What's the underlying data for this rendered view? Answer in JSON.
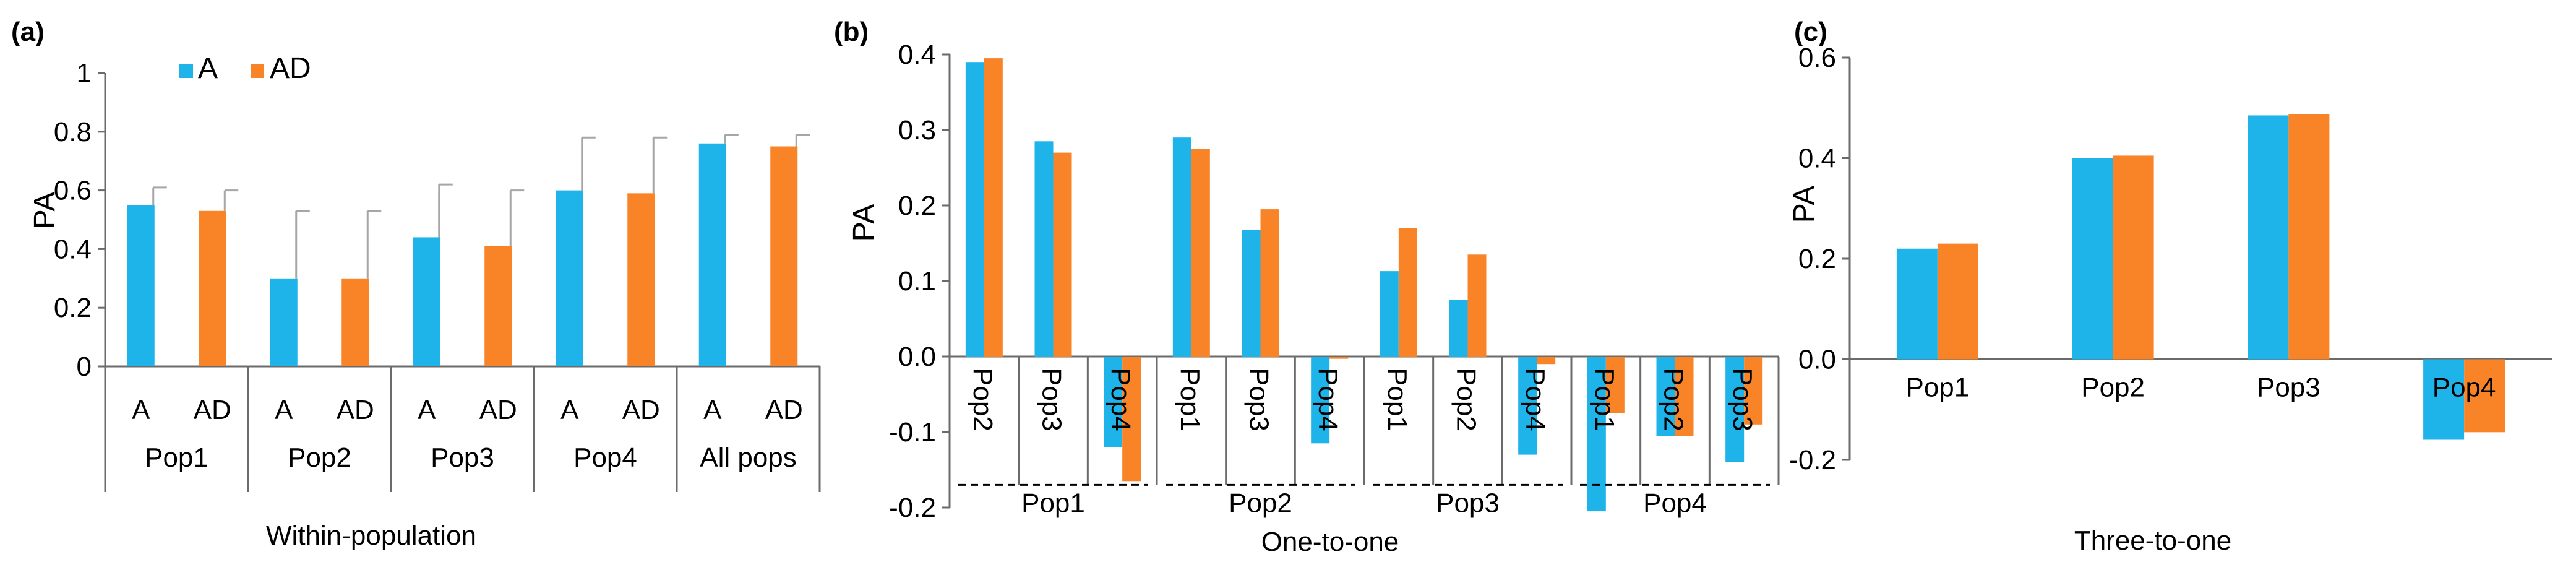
{
  "colors": {
    "A": "#1EB4EA",
    "AD": "#F98428"
  },
  "chart_data": [
    {
      "panel": "(a)",
      "type": "bar",
      "ylabel": "PA",
      "xlabel": "Within-population",
      "ylim": [
        0,
        1
      ],
      "yticks": [
        "0",
        "0.2",
        "0.4",
        "0.6",
        "0.8",
        "1"
      ],
      "legend": {
        "position": "top-left",
        "entries": [
          "A",
          "AD"
        ]
      },
      "groups": [
        {
          "label": "Pop1",
          "bars": [
            {
              "series": "A",
              "label": "A",
              "value": 0.55,
              "error": 0.06
            },
            {
              "series": "AD",
              "label": "AD",
              "value": 0.53,
              "error": 0.07
            }
          ]
        },
        {
          "label": "Pop2",
          "bars": [
            {
              "series": "A",
              "label": "A",
              "value": 0.3,
              "error": 0.23
            },
            {
              "series": "AD",
              "label": "AD",
              "value": 0.3,
              "error": 0.23
            }
          ]
        },
        {
          "label": "Pop3",
          "bars": [
            {
              "series": "A",
              "label": "A",
              "value": 0.44,
              "error": 0.18
            },
            {
              "series": "AD",
              "label": "AD",
              "value": 0.41,
              "error": 0.19
            }
          ]
        },
        {
          "label": "Pop4",
          "bars": [
            {
              "series": "A",
              "label": "A",
              "value": 0.6,
              "error": 0.18
            },
            {
              "series": "AD",
              "label": "AD",
              "value": 0.59,
              "error": 0.19
            }
          ]
        },
        {
          "label": "All  pops",
          "bars": [
            {
              "series": "A",
              "label": "A",
              "value": 0.76,
              "error": 0.03
            },
            {
              "series": "AD",
              "label": "AD",
              "value": 0.75,
              "error": 0.04
            }
          ]
        }
      ]
    },
    {
      "panel": "(b)",
      "type": "bar",
      "ylabel": "PA",
      "xlabel": "One-to-one",
      "ylim": [
        -0.2,
        0.4
      ],
      "yticks": [
        "-0.2",
        "-0.1",
        "0.0",
        "0.1",
        "0.2",
        "0.3",
        "0.4"
      ],
      "groups": [
        {
          "label": "Pop1",
          "categories": [
            {
              "label": "Pop2",
              "A": 0.39,
              "AD": 0.395
            },
            {
              "label": "Pop3",
              "A": 0.285,
              "AD": 0.27
            },
            {
              "label": "Pop4",
              "A": -0.12,
              "AD": -0.165
            }
          ]
        },
        {
          "label": "Pop2",
          "categories": [
            {
              "label": "Pop1",
              "A": 0.29,
              "AD": 0.275
            },
            {
              "label": "Pop3",
              "A": 0.168,
              "AD": 0.195
            },
            {
              "label": "Pop4",
              "A": -0.115,
              "AD": -0.003
            }
          ]
        },
        {
          "label": "Pop3",
          "categories": [
            {
              "label": "Pop1",
              "A": 0.113,
              "AD": 0.17
            },
            {
              "label": "Pop2",
              "A": 0.075,
              "AD": 0.135
            },
            {
              "label": "Pop4",
              "A": -0.13,
              "AD": -0.01
            }
          ]
        },
        {
          "label": "Pop4",
          "categories": [
            {
              "label": "Pop1",
              "A": -0.205,
              "AD": -0.075
            },
            {
              "label": "Pop2",
              "A": -0.105,
              "AD": -0.105
            },
            {
              "label": "Pop3",
              "A": -0.14,
              "AD": -0.09
            }
          ]
        }
      ]
    },
    {
      "panel": "(c)",
      "type": "bar",
      "ylabel": "PA",
      "xlabel": "Three-to-one",
      "ylim": [
        -0.2,
        0.6
      ],
      "yticks": [
        "-0.2",
        "0.0",
        "0.2",
        "0.4",
        "0.6"
      ],
      "categories": [
        "Pop1",
        "Pop2",
        "Pop3",
        "Pop4"
      ],
      "series": [
        {
          "name": "A",
          "values": [
            0.22,
            0.4,
            0.485,
            -0.16
          ]
        },
        {
          "name": "AD",
          "values": [
            0.23,
            0.405,
            0.488,
            -0.145
          ]
        }
      ]
    }
  ]
}
